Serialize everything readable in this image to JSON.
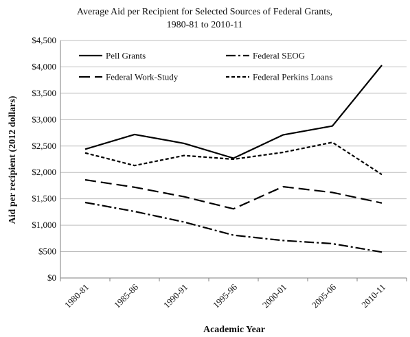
{
  "chart_data": {
    "type": "line",
    "title": "Average Aid per Recipient for Selected Sources of Federal Grants,",
    "subtitle": "1980-81 to 2010-11",
    "xlabel": "Academic Year",
    "ylabel": "Aid per recipient (2012 dollars)",
    "ylim": [
      0,
      4500
    ],
    "y_ticks": [
      "$0",
      "$500",
      "$1,000",
      "$1,500",
      "$2,000",
      "$2,500",
      "$3,000",
      "$3,500",
      "$4,000",
      "$4,500"
    ],
    "y_tick_values": [
      0,
      500,
      1000,
      1500,
      2000,
      2500,
      3000,
      3500,
      4000,
      4500
    ],
    "grid": true,
    "legend_position": "top",
    "categories": [
      "1980-81",
      "1985-86",
      "1990-91",
      "1995-96",
      "2000-01",
      "2005-06",
      "2010-11"
    ],
    "series": [
      {
        "name": "Pell Grants",
        "style": "solid",
        "color": "#000000",
        "values": [
          2440,
          2720,
          2550,
          2270,
          2710,
          2880,
          4030
        ]
      },
      {
        "name": "Federal SEOG",
        "style": "dash-dot",
        "color": "#000000",
        "values": [
          1430,
          1260,
          1060,
          810,
          710,
          650,
          490
        ]
      },
      {
        "name": "Federal Work-Study",
        "style": "long-dash",
        "color": "#000000",
        "values": [
          1860,
          1720,
          1540,
          1310,
          1730,
          1620,
          1420
        ]
      },
      {
        "name": "Federal Perkins Loans",
        "style": "short-dash",
        "color": "#000000",
        "values": [
          2370,
          2130,
          2320,
          2250,
          2380,
          2570,
          1960
        ]
      }
    ]
  }
}
